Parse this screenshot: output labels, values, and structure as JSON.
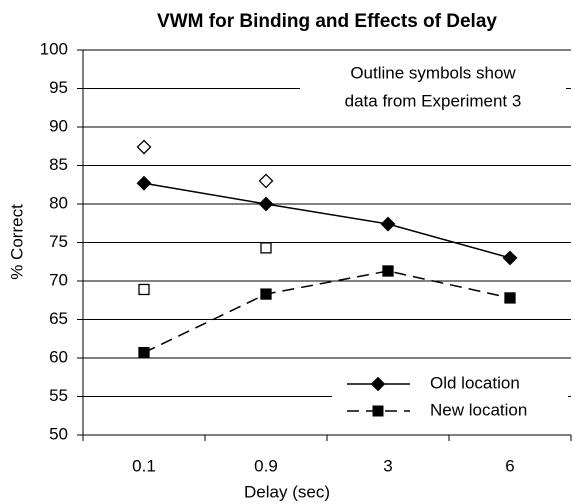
{
  "chart_data": {
    "type": "line",
    "title": "VWM for Binding and Effects of Delay",
    "xlabel": "Delay (sec)",
    "ylabel": "% Correct",
    "annotation": [
      "Outline symbols show",
      "data from Experiment 3"
    ],
    "categories": [
      "0.1",
      "0.9",
      "3",
      "6"
    ],
    "series": [
      {
        "name": "Old location",
        "color": "#000000",
        "dash": false,
        "marker": "diamond",
        "filled": true,
        "line": true,
        "values": [
          82.7,
          80.0,
          77.4,
          73.0
        ]
      },
      {
        "name": "New location",
        "color": "#000000",
        "dash": true,
        "marker": "square",
        "filled": true,
        "line": true,
        "values": [
          60.7,
          68.3,
          71.3,
          67.8
        ]
      },
      {
        "color": "#000000",
        "marker": "diamond",
        "filled": false,
        "line": false,
        "values": [
          87.4,
          83.0,
          null,
          null
        ]
      },
      {
        "color": "#000000",
        "marker": "square",
        "filled": false,
        "line": false,
        "values": [
          68.9,
          74.3,
          null,
          null
        ]
      }
    ],
    "ylim": [
      50,
      100
    ],
    "yticks": [
      50,
      55,
      60,
      65,
      70,
      75,
      80,
      85,
      90,
      95,
      100
    ],
    "grid": true,
    "legend": "lower right"
  }
}
